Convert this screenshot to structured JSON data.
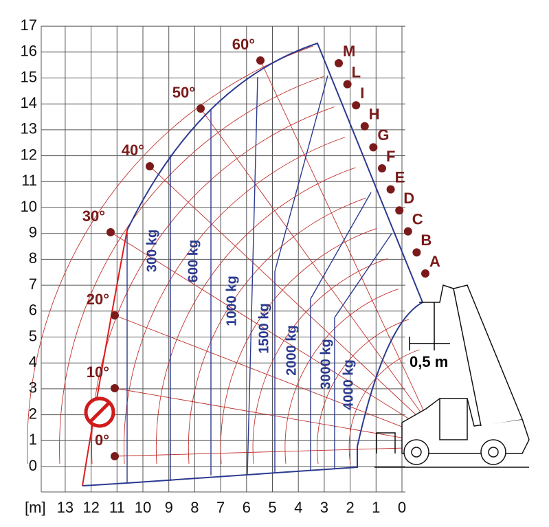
{
  "axis": {
    "unit": "[m]",
    "x_labels": [
      "13",
      "12",
      "11",
      "10",
      "9",
      "8",
      "7",
      "6",
      "5",
      "4",
      "3",
      "2",
      "1",
      "0"
    ],
    "y_labels": [
      "0",
      "1",
      "2",
      "3",
      "4",
      "5",
      "6",
      "7",
      "8",
      "9",
      "10",
      "11",
      "12",
      "13",
      "14",
      "15",
      "16",
      "17"
    ]
  },
  "angles": [
    "0°",
    "10°",
    "20°",
    "30°",
    "40°",
    "50°",
    "60°"
  ],
  "extensions": [
    "A",
    "B",
    "C",
    "D",
    "E",
    "F",
    "G",
    "H",
    "I",
    "L",
    "M"
  ],
  "loads": [
    "300 kg",
    "600 kg",
    "1000 kg",
    "1500 kg",
    "2000 kg",
    "3000 kg",
    "4000 kg"
  ],
  "dimension": "0,5 m"
}
